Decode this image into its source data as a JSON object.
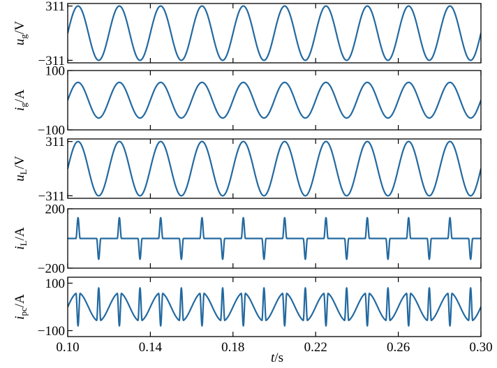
{
  "colors": {
    "trace": "#2369a0",
    "axis": "#000000",
    "background": "#ffffff"
  },
  "chart_data": {
    "type": "line",
    "x_axis": {
      "range": [
        0.1,
        0.3
      ],
      "ticks": [
        0.1,
        0.14,
        0.18,
        0.22,
        0.26,
        0.3
      ],
      "tick_labels": [
        "0.10",
        "0.14",
        "0.18",
        "0.22",
        "0.26",
        "0.30"
      ],
      "label_symbol": "t",
      "label_unit": "/s"
    },
    "panels": [
      {
        "id": "ug",
        "ylabel": {
          "symbol": "u",
          "subscript": "g",
          "unit": "/V"
        },
        "ylim": [
          -340,
          340
        ],
        "yticks": [
          311,
          -311
        ],
        "ytick_labels": [
          "311",
          "−311"
        ],
        "waveform": {
          "kind": "sine",
          "frequency_hz": 50,
          "amplitude": 311,
          "phase_deg": 0
        }
      },
      {
        "id": "ig",
        "ylabel": {
          "symbol": "i",
          "subscript": "g",
          "unit": "/A"
        },
        "ylim": [
          -100,
          100
        ],
        "yticks": [
          100,
          -100
        ],
        "ytick_labels": [
          "100",
          "−100"
        ],
        "waveform": {
          "kind": "sine",
          "frequency_hz": 50,
          "amplitude": 60,
          "phase_deg": 0
        }
      },
      {
        "id": "uL",
        "ylabel": {
          "symbol": "u",
          "subscript": "L",
          "unit": "/V"
        },
        "ylim": [
          -340,
          340
        ],
        "yticks": [
          311,
          -311
        ],
        "ytick_labels": [
          "311",
          "−311"
        ],
        "waveform": {
          "kind": "sine",
          "frequency_hz": 50,
          "amplitude": 311,
          "phase_deg": 0
        }
      },
      {
        "id": "iL",
        "ylabel": {
          "symbol": "i",
          "subscript": "L",
          "unit": "/A"
        },
        "ylim": [
          -200,
          200
        ],
        "yticks": [
          200,
          -200
        ],
        "ytick_labels": [
          "200",
          "−200"
        ],
        "waveform": {
          "kind": "rectifier_pulses",
          "frequency_hz": 50,
          "peak": 140,
          "conduction_angle_deg": 18
        }
      },
      {
        "id": "ipc",
        "ylabel": {
          "symbol": "i",
          "subscript": "pc",
          "unit": "/A"
        },
        "ylim": [
          -125,
          125
        ],
        "yticks": [
          100,
          -100
        ],
        "ytick_labels": [
          "100",
          "−100"
        ],
        "waveform": {
          "kind": "compensation",
          "frequency_hz": 50,
          "fundamental_amplitude": 60,
          "load_peak": 140,
          "conduction_angle_deg": 18
        }
      }
    ]
  }
}
